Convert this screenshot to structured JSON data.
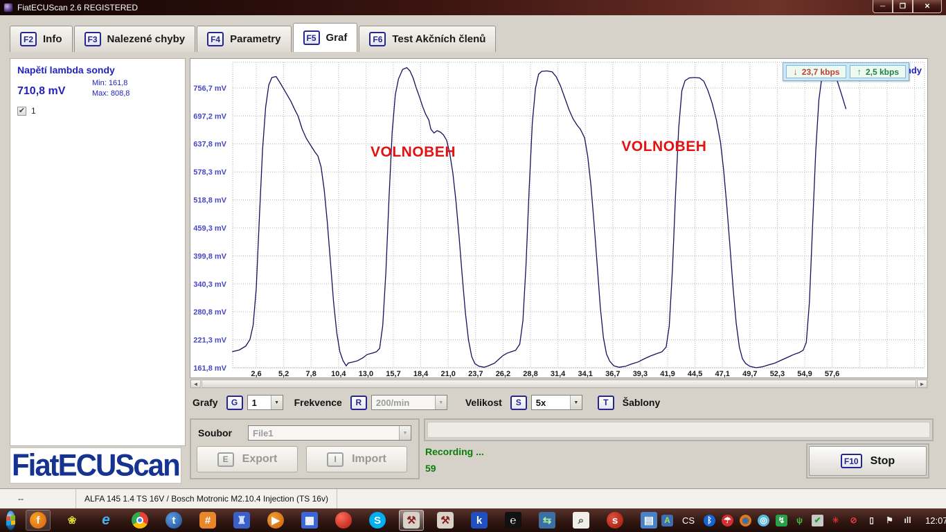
{
  "window": {
    "title": "FiatECUScan 2.6 REGISTERED"
  },
  "tabs": [
    {
      "key": "F2",
      "label": "Info",
      "active": false
    },
    {
      "key": "F3",
      "label": "Nalezené chyby",
      "active": false
    },
    {
      "key": "F4",
      "label": "Parametry",
      "active": false
    },
    {
      "key": "F5",
      "label": "Graf",
      "active": true
    },
    {
      "key": "F6",
      "label": "Test Akčních členů",
      "active": false
    }
  ],
  "sensor_panel": {
    "title": "Napětí lambda sondy",
    "value": "710,8 mV",
    "min_label": "Min: 161,8",
    "max_label": "Max: 808,8",
    "channel_label": "1",
    "checked": true
  },
  "logo_text": "FiatECUScan",
  "chart_data": {
    "type": "line",
    "title": "Napětí lambda sondy",
    "unit": "mV",
    "line_color": "#10105e",
    "grid": true,
    "ylim": [
      161.8,
      810
    ],
    "y_tick_values": [
      756.7,
      697.2,
      637.8,
      578.3,
      518.8,
      459.3,
      399.8,
      340.3,
      280.8,
      221.3,
      161.8
    ],
    "y_tick_labels": [
      "756,7 mV",
      "697,2 mV",
      "637,8 mV",
      "578,3 mV",
      "518,8 mV",
      "459,3 mV",
      "399,8 mV",
      "340,3 mV",
      "280,8 mV",
      "221,3 mV",
      "161,8 mV"
    ],
    "x_tick_labels": [
      "2,6",
      "5,2",
      "7,8",
      "10,4",
      "13,0",
      "15,7",
      "18,4",
      "21,0",
      "23,7",
      "26,2",
      "28,8",
      "31,4",
      "34,1",
      "36,7",
      "39,3",
      "41,9",
      "44,5",
      "47,1",
      "49,7",
      "52,3",
      "54,9",
      "57,6"
    ],
    "min": 161.8,
    "max": 808.8,
    "current": 710.8,
    "annotations": [
      {
        "text": "VOLNOBEH",
        "t": 17.6,
        "mv": 620
      },
      {
        "text": "VOLNOBEH",
        "t": 41.6,
        "mv": 632
      }
    ],
    "badges": {
      "download": "23,7 kbps",
      "upload": "2,5 kbps",
      "down_arrow": "↓",
      "up_arrow": "↑"
    },
    "series": [
      {
        "name": "Napětí lambda sondy",
        "points": [
          [
            0.3,
            196
          ],
          [
            1,
            200
          ],
          [
            1.6,
            208
          ],
          [
            2,
            222
          ],
          [
            2.3,
            252
          ],
          [
            2.6,
            330
          ],
          [
            2.9,
            480
          ],
          [
            3.2,
            625
          ],
          [
            3.5,
            716
          ],
          [
            3.8,
            763
          ],
          [
            4.1,
            779
          ],
          [
            4.5,
            781
          ],
          [
            4.9,
            767
          ],
          [
            5.4,
            748
          ],
          [
            5.9,
            729
          ],
          [
            6.3,
            710
          ],
          [
            6.6,
            697
          ],
          [
            7,
            669
          ],
          [
            7.4,
            649
          ],
          [
            7.8,
            635
          ],
          [
            8.2,
            621
          ],
          [
            8.5,
            612
          ],
          [
            8.8,
            589
          ],
          [
            9.1,
            541
          ],
          [
            9.4,
            470
          ],
          [
            9.7,
            386
          ],
          [
            10,
            301
          ],
          [
            10.3,
            236
          ],
          [
            10.6,
            196
          ],
          [
            10.9,
            177
          ],
          [
            11.2,
            166
          ],
          [
            11.4,
            172
          ],
          [
            11.8,
            174
          ],
          [
            12.3,
            177
          ],
          [
            12.8,
            183
          ],
          [
            13.2,
            190
          ],
          [
            13.7,
            193
          ],
          [
            14.1,
            196
          ],
          [
            14.4,
            203
          ],
          [
            14.7,
            252
          ],
          [
            15,
            365
          ],
          [
            15.3,
            525
          ],
          [
            15.6,
            663
          ],
          [
            15.9,
            742
          ],
          [
            16.2,
            776
          ],
          [
            16.6,
            796
          ],
          [
            17,
            800
          ],
          [
            17.3,
            793
          ],
          [
            17.6,
            778
          ],
          [
            17.9,
            757
          ],
          [
            18.2,
            738
          ],
          [
            18.5,
            718
          ],
          [
            18.8,
            701
          ],
          [
            19.1,
            689
          ],
          [
            19.3,
            669
          ],
          [
            19.6,
            661
          ],
          [
            19.9,
            666
          ],
          [
            20.2,
            663
          ],
          [
            20.5,
            657
          ],
          [
            20.8,
            646
          ],
          [
            21.1,
            619
          ],
          [
            21.4,
            576
          ],
          [
            21.7,
            516
          ],
          [
            22,
            441
          ],
          [
            22.3,
            356
          ],
          [
            22.6,
            279
          ],
          [
            22.9,
            221
          ],
          [
            23.2,
            186
          ],
          [
            23.5,
            171
          ],
          [
            23.9,
            165
          ],
          [
            24.4,
            163
          ],
          [
            24.9,
            167
          ],
          [
            25.4,
            172
          ],
          [
            25.8,
            180
          ],
          [
            26.2,
            188
          ],
          [
            26.6,
            193
          ],
          [
            27,
            196
          ],
          [
            27.4,
            199
          ],
          [
            27.8,
            212
          ],
          [
            28.1,
            262
          ],
          [
            28.4,
            382
          ],
          [
            28.7,
            542
          ],
          [
            29,
            681
          ],
          [
            29.3,
            756
          ],
          [
            29.6,
            786
          ],
          [
            29.9,
            792
          ],
          [
            30.4,
            793
          ],
          [
            30.9,
            791
          ],
          [
            31.3,
            780
          ],
          [
            31.7,
            761
          ],
          [
            32.1,
            736
          ],
          [
            32.5,
            711
          ],
          [
            32.9,
            691
          ],
          [
            33.3,
            677
          ],
          [
            33.6,
            669
          ],
          [
            34,
            651
          ],
          [
            34.3,
            611
          ],
          [
            34.6,
            551
          ],
          [
            34.9,
            471
          ],
          [
            35.2,
            381
          ],
          [
            35.5,
            291
          ],
          [
            35.8,
            226
          ],
          [
            36.1,
            191
          ],
          [
            36.4,
            176
          ],
          [
            36.8,
            166
          ],
          [
            37.3,
            163
          ],
          [
            37.9,
            165
          ],
          [
            38.5,
            170
          ],
          [
            39.1,
            174
          ],
          [
            39.7,
            181
          ],
          [
            40.3,
            187
          ],
          [
            40.9,
            192
          ],
          [
            41.4,
            196
          ],
          [
            41.8,
            206
          ],
          [
            42.1,
            251
          ],
          [
            42.4,
            371
          ],
          [
            42.7,
            531
          ],
          [
            43,
            671
          ],
          [
            43.3,
            751
          ],
          [
            43.6,
            772
          ],
          [
            44,
            778
          ],
          [
            44.5,
            779
          ],
          [
            45,
            778
          ],
          [
            45.4,
            771
          ],
          [
            45.8,
            751
          ],
          [
            46.2,
            724
          ],
          [
            46.6,
            689
          ],
          [
            47,
            641
          ],
          [
            47.3,
            581
          ],
          [
            47.6,
            506
          ],
          [
            47.9,
            421
          ],
          [
            48.2,
            331
          ],
          [
            48.5,
            256
          ],
          [
            48.8,
            206
          ],
          [
            49.1,
            181
          ],
          [
            49.4,
            171
          ],
          [
            49.8,
            165
          ],
          [
            50.4,
            162
          ],
          [
            51,
            164
          ],
          [
            51.6,
            168
          ],
          [
            52.2,
            172
          ],
          [
            52.8,
            178
          ],
          [
            53.4,
            184
          ],
          [
            54,
            190
          ],
          [
            54.5,
            194
          ],
          [
            54.9,
            199
          ],
          [
            55.2,
            216
          ],
          [
            55.5,
            302
          ],
          [
            55.8,
            462
          ],
          [
            56.1,
            622
          ],
          [
            56.4,
            731
          ],
          [
            56.7,
            781
          ],
          [
            57,
            797
          ],
          [
            57.4,
            800
          ],
          [
            57.8,
            794
          ],
          [
            58.2,
            769
          ],
          [
            58.6,
            741
          ],
          [
            59,
            712
          ]
        ]
      }
    ]
  },
  "controls": {
    "grafy_label": "Grafy",
    "g_key": "G",
    "graph_count": "1",
    "frekvence_label": "Frekvence",
    "r_key": "R",
    "frequency": "200/min",
    "velikost_label": "Velikost",
    "s_key": "S",
    "size": "5x",
    "t_key": "T",
    "sablony_label": "Šablony"
  },
  "file_panel": {
    "label": "Soubor",
    "file": "File1",
    "export_key": "E",
    "export_label": "Export",
    "import_key": "I",
    "import_label": "Import"
  },
  "recording": {
    "status": "Recording ...",
    "counter": "59",
    "stop_key": "F10",
    "stop_label": "Stop"
  },
  "status_bar": {
    "left": "--",
    "vehicle": "ALFA 145 1.4 TS 16V / Bosch Motronic M2.10.4 Injection (TS 16v)"
  },
  "taskbar": {
    "language": "CS",
    "time": "12:07",
    "apps": [
      {
        "name": "firefox",
        "glyph": "f",
        "fg": "#fff",
        "bg": "radial-gradient(circle at 35% 35%, #f7a223, #d95b12)",
        "radius": "50%",
        "open": true
      },
      {
        "name": "qip",
        "glyph": "❀",
        "fg": "#d8d832",
        "bg": "transparent"
      },
      {
        "name": "internet-explorer",
        "glyph": "e",
        "fg": "#45b0f0",
        "bg": "transparent",
        "big": true,
        "italic": true
      },
      {
        "name": "chrome",
        "glyph": "",
        "fg": "#fff",
        "bg": "conic-gradient(#ea4335 0 33%, #fbbc05 33% 66%, #34a853 66% 100%)",
        "radius": "50%",
        "dot": "#4285f4"
      },
      {
        "name": "thunderbird",
        "glyph": "t",
        "fg": "#fff",
        "bg": "radial-gradient(circle at 35% 35%, #5a9ae0, #1d4e90)",
        "radius": "50%"
      },
      {
        "name": "hash-app",
        "glyph": "#",
        "fg": "#fff",
        "bg": "#e8862a",
        "radius": "5px"
      },
      {
        "name": "blue-robot-app",
        "glyph": "♜",
        "fg": "#cfe0ff",
        "bg": "#3a5fc8",
        "radius": "4px"
      },
      {
        "name": "media-player-classic",
        "glyph": "▶",
        "fg": "#fff",
        "bg": "radial-gradient(circle at 35% 35%, #f0a030, #c86010)",
        "radius": "50%"
      },
      {
        "name": "floppy-save-app",
        "glyph": "▦",
        "fg": "#fff",
        "bg": "#3a66d8",
        "radius": "3px"
      },
      {
        "name": "cherry-app",
        "glyph": "",
        "fg": "#fff",
        "bg": "radial-gradient(circle at 35% 30%, #ff6a5a, #b01810)",
        "radius": "50%"
      },
      {
        "name": "skype",
        "glyph": "S",
        "fg": "#fff",
        "bg": "#00aff0",
        "radius": "50%"
      },
      {
        "name": "fiatecuscan",
        "glyph": "⚒",
        "fg": "#8a2020",
        "bg": "#d8d2c8",
        "radius": "4px",
        "active": true
      },
      {
        "name": "fiatecuscan-2",
        "glyph": "⚒",
        "fg": "#8a2020",
        "bg": "#d8d2c8",
        "radius": "4px"
      },
      {
        "name": "blue-flag-app",
        "glyph": "k",
        "fg": "#fff",
        "bg": "#2050c0",
        "radius": "4px"
      },
      {
        "name": "emule",
        "glyph": "℮",
        "fg": "#fff",
        "bg": "#111",
        "radius": "3px"
      },
      {
        "name": "remote-desktop",
        "glyph": "⇆",
        "fg": "#aef0a0",
        "bg": "#3a6ea5",
        "radius": "3px"
      },
      {
        "name": "file-search",
        "glyph": "⌕",
        "fg": "#444",
        "bg": "#f0eee8",
        "radius": "3px"
      },
      {
        "name": "red-tool-app",
        "glyph": "s",
        "fg": "#fff",
        "bg": "radial-gradient(circle at 35% 35%, #e05040, #981808)",
        "radius": "50%"
      },
      {
        "name": "explorer-window",
        "glyph": "▤",
        "fg": "#fff",
        "bg": "#4a80c8",
        "radius": "3px"
      }
    ],
    "tray": [
      {
        "name": "android-app",
        "glyph": "A",
        "fg": "#9fe04a",
        "bg": "#3b6eb5",
        "radius": "3px"
      },
      {
        "name": "language-indicator",
        "text": "CS"
      },
      {
        "name": "bluetooth",
        "glyph": "ᛒ",
        "fg": "#fff",
        "bg": "#1565d8",
        "radius": "50%"
      },
      {
        "name": "avira-antivirus",
        "glyph": "☂",
        "fg": "#fff",
        "bg": "#d32f2f",
        "radius": "50%"
      },
      {
        "name": "eye-app",
        "glyph": "◉",
        "fg": "#2a6fb8",
        "bg": "#e07818",
        "radius": "50%"
      },
      {
        "name": "lens-app",
        "glyph": "◎",
        "fg": "#fff",
        "bg": "#58b8e0",
        "radius": "50%"
      },
      {
        "name": "green-flash-app",
        "glyph": "↯",
        "fg": "#fff",
        "bg": "#28a048",
        "radius": "3px"
      },
      {
        "name": "wireless-antenna",
        "glyph": "ψ",
        "fg": "#40c040",
        "bg": "transparent"
      },
      {
        "name": "printer-ok",
        "glyph": "✔",
        "fg": "#20a020",
        "bg": "#c8c8c8",
        "radius": "2px"
      },
      {
        "name": "network-error",
        "glyph": "✳",
        "fg": "#d03030",
        "bg": "transparent"
      },
      {
        "name": "volume-muted",
        "glyph": "⊘",
        "fg": "#e04040",
        "bg": "transparent"
      },
      {
        "name": "battery",
        "glyph": "▯",
        "fg": "#eee",
        "bg": "transparent"
      },
      {
        "name": "flag-error",
        "glyph": "⚑",
        "fg": "#eee",
        "bg": "transparent"
      },
      {
        "name": "signal-bars",
        "glyph": "ıll",
        "fg": "#eee",
        "bg": "transparent"
      }
    ]
  }
}
